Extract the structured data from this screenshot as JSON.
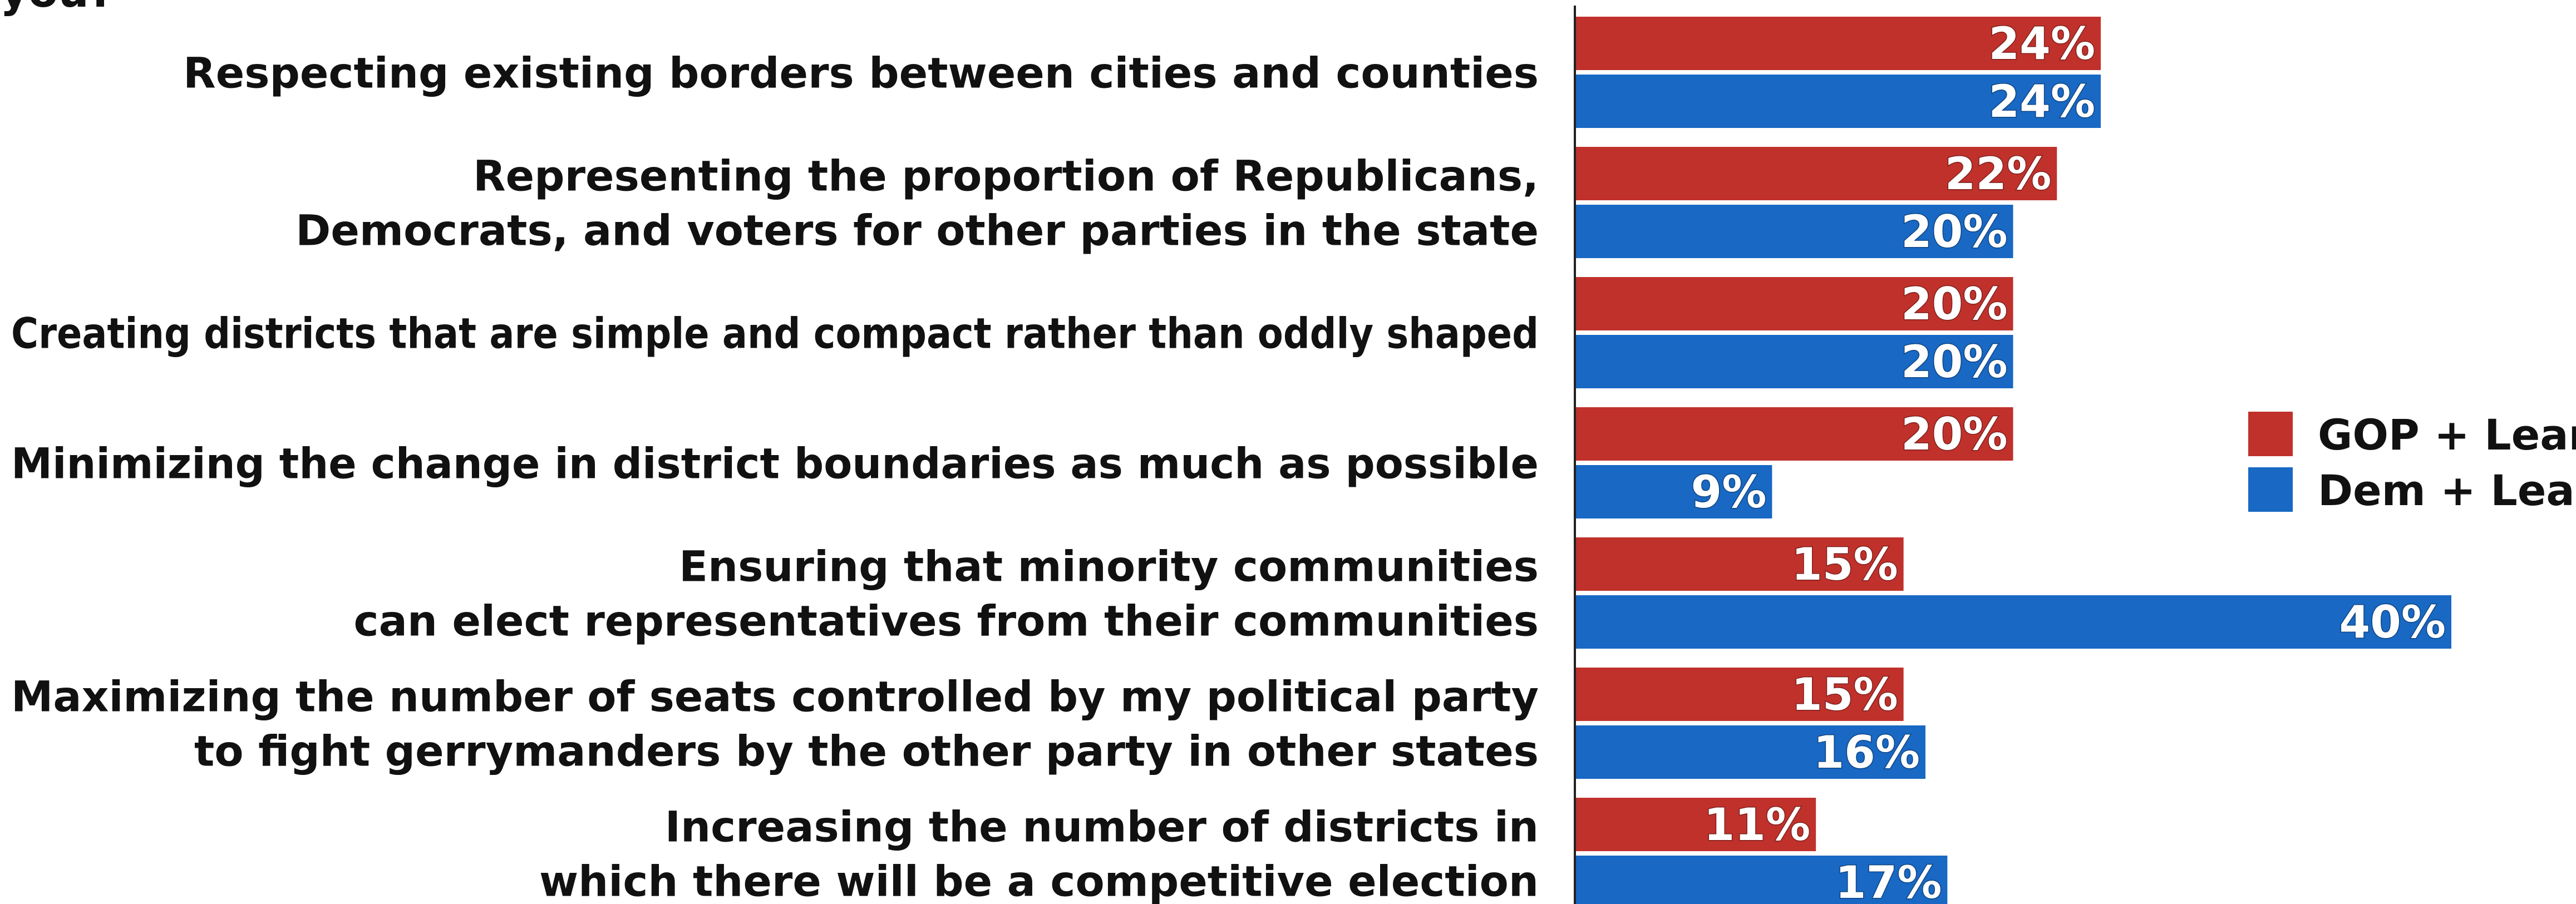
{
  "chart_data": {
    "type": "bar",
    "orientation": "horizontal",
    "title_fragment": "you?",
    "categories": [
      [
        "Respecting existing borders between cities and counties"
      ],
      [
        "Representing the proportion of Republicans,",
        "Democrats, and voters for other parties in the state"
      ],
      [
        "Creating districts that are simple and compact rather than oddly shaped"
      ],
      [
        "Minimizing the change in district boundaries as much as possible"
      ],
      [
        "Ensuring that minority communities",
        "can elect representatives from their communities"
      ],
      [
        "Maximizing the number of seats controlled by my political party",
        "to fight gerrymanders by the other party in other states"
      ],
      [
        "Increasing the number of districts in",
        "which there will be a competitive election"
      ]
    ],
    "series": [
      {
        "name": "GOP + Lean",
        "color": "#c0312b",
        "values": [
          24,
          22,
          20,
          20,
          15,
          15,
          11
        ]
      },
      {
        "name": "Dem + Lean",
        "color": "#1868c4",
        "values": [
          24,
          20,
          20,
          9,
          40,
          16,
          17
        ]
      }
    ],
    "value_suffix": "%",
    "xlim": [
      0,
      40
    ],
    "grid": false,
    "legend_position": "right"
  }
}
